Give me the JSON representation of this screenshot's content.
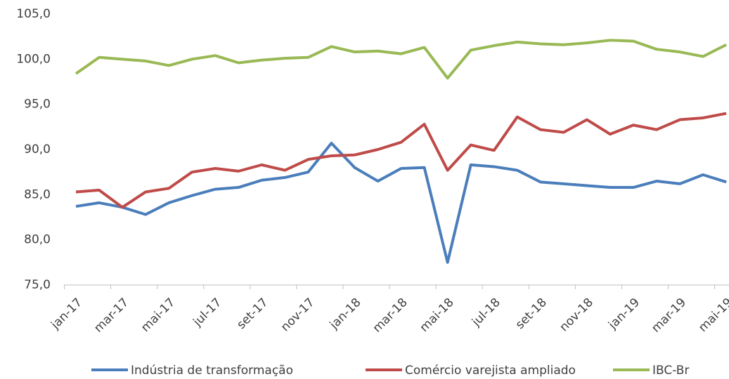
{
  "chart_data": {
    "type": "line",
    "categories": [
      "jan-17",
      null,
      "mar-17",
      null,
      "mai-17",
      null,
      "jul-17",
      null,
      "set-17",
      null,
      "nov-17",
      null,
      "jan-18",
      null,
      "mar-18",
      null,
      "mai-18",
      null,
      "jul-18",
      null,
      "set-18",
      null,
      "nov-18",
      null,
      "jan-19",
      null,
      "mar-19",
      null,
      "mai-19"
    ],
    "series": [
      {
        "name": "Indústria de transformação",
        "color": "#4a7ebb",
        "values": [
          83.7,
          84.1,
          83.6,
          82.8,
          84.1,
          84.9,
          85.6,
          85.8,
          86.6,
          86.9,
          87.5,
          90.7,
          88.0,
          86.5,
          87.9,
          88.0,
          77.5,
          88.3,
          88.1,
          87.7,
          86.4,
          86.2,
          86.0,
          85.8,
          85.8,
          86.5,
          86.2,
          87.2,
          86.4
        ]
      },
      {
        "name": "Comércio varejista ampliado",
        "color": "#be4b48",
        "values": [
          85.3,
          85.5,
          83.6,
          85.3,
          85.7,
          87.5,
          87.9,
          87.6,
          88.3,
          87.7,
          88.9,
          89.3,
          89.4,
          90.0,
          90.8,
          92.8,
          87.7,
          90.5,
          89.9,
          93.6,
          92.2,
          91.9,
          93.3,
          91.7,
          92.7,
          92.2,
          93.3,
          93.5,
          94.0
        ]
      },
      {
        "name": "IBC-Br",
        "color": "#98b954",
        "values": [
          98.4,
          100.2,
          100.0,
          99.8,
          99.3,
          100.0,
          100.4,
          99.6,
          99.9,
          100.1,
          100.2,
          101.4,
          100.8,
          100.9,
          100.6,
          101.3,
          97.9,
          101.0,
          101.5,
          101.9,
          101.7,
          101.6,
          101.8,
          102.1,
          102.0,
          101.1,
          100.8,
          100.3,
          101.6
        ]
      }
    ],
    "ylim": [
      75,
      105
    ],
    "yticks": [
      {
        "value": 75,
        "label": "75,0"
      },
      {
        "value": 80,
        "label": "80,0"
      },
      {
        "value": 85,
        "label": "85,0"
      },
      {
        "value": 90,
        "label": "90,0"
      },
      {
        "value": 95,
        "label": "95,0"
      },
      {
        "value": 100,
        "label": "100,0"
      },
      {
        "value": 105,
        "label": "105,0"
      }
    ],
    "grid": false,
    "legend": "bottom"
  }
}
